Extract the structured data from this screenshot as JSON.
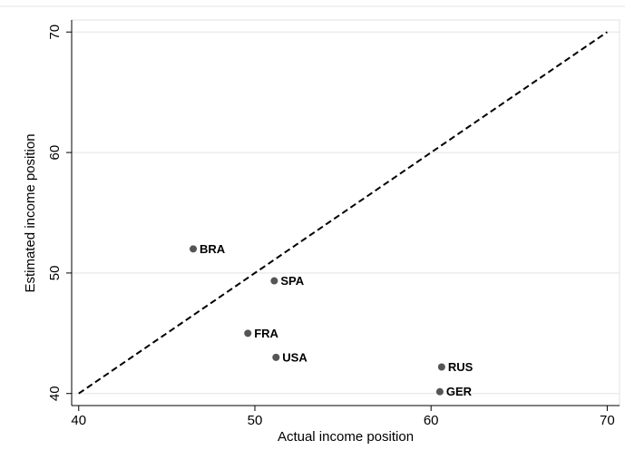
{
  "chart_data": {
    "type": "scatter",
    "x_label": "Actual income position",
    "y_label": "Estimated income position",
    "labels": [
      "BRA",
      "SPA",
      "FRA",
      "USA",
      "RUS",
      "GER"
    ],
    "x": [
      46.5,
      51.1,
      49.6,
      51.2,
      60.6,
      60.5
    ],
    "y": [
      52.0,
      49.35,
      45.0,
      43.0,
      42.2,
      40.15
    ],
    "color": "#555555",
    "reference_line": {
      "x": [
        40,
        70
      ],
      "y": [
        40,
        70
      ],
      "dashed": true
    },
    "xlim": [
      39.6,
      70.7
    ],
    "ylim": [
      39,
      71
    ],
    "xticks": [
      40,
      50,
      60,
      70
    ],
    "yticks": [
      40,
      50,
      60,
      70
    ],
    "grid": true
  }
}
